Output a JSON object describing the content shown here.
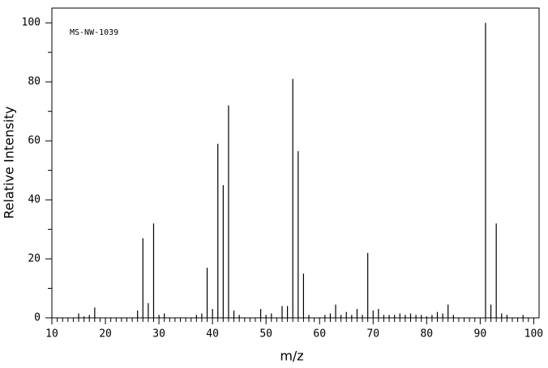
{
  "chart_data": {
    "type": "stem",
    "annotation": "MS-NW-1039",
    "xlabel": "m/z",
    "ylabel": "Relative Intensity",
    "color": "#000000",
    "x": [
      15,
      16,
      17,
      18,
      26,
      27,
      28,
      29,
      30,
      31,
      37,
      38,
      39,
      40,
      41,
      42,
      43,
      44,
      45,
      49,
      50,
      51,
      53,
      54,
      55,
      56,
      57,
      58,
      61,
      62,
      63,
      64,
      65,
      66,
      67,
      68,
      69,
      70,
      71,
      72,
      73,
      74,
      75,
      76,
      77,
      78,
      79,
      80,
      81,
      82,
      83,
      84,
      85,
      91,
      92,
      93,
      94,
      95,
      98
    ],
    "values": [
      1.5,
      0.5,
      1,
      3.5,
      2.5,
      27,
      5,
      32,
      1,
      1.5,
      1,
      1.5,
      17,
      3,
      59,
      45,
      72,
      2.5,
      1,
      3,
      1,
      1.5,
      4,
      4,
      81,
      56.5,
      15,
      1,
      1,
      1.5,
      4.5,
      1,
      2,
      1,
      3,
      1,
      22,
      2.5,
      3,
      1,
      1,
      1,
      1.5,
      1,
      1.5,
      1,
      1,
      0.5,
      1,
      2,
      1.5,
      4.5,
      1,
      100,
      4.5,
      32,
      1.5,
      1,
      1
    ],
    "xlim": [
      10,
      101
    ],
    "ylim": [
      0,
      105
    ],
    "xticks": [
      10,
      20,
      30,
      40,
      50,
      60,
      70,
      80,
      90,
      100
    ],
    "xminorticks": [
      11,
      12,
      13,
      14,
      15,
      16,
      17,
      18,
      19,
      21,
      22,
      23,
      24,
      25,
      26,
      27,
      28,
      29,
      31,
      32,
      33,
      34,
      35,
      36,
      37,
      38,
      39,
      41,
      42,
      43,
      44,
      45,
      46,
      47,
      48,
      49,
      51,
      52,
      53,
      54,
      55,
      56,
      57,
      58,
      59,
      61,
      62,
      63,
      64,
      65,
      66,
      67,
      68,
      69,
      71,
      72,
      73,
      74,
      75,
      76,
      77,
      78,
      79,
      81,
      82,
      83,
      84,
      85,
      86,
      87,
      88,
      89,
      91,
      92,
      93,
      94,
      95,
      96,
      97,
      98,
      99
    ],
    "yticks": [
      0,
      20,
      40,
      60,
      80,
      100
    ],
    "yminorticks": [
      10,
      30,
      50,
      70,
      90
    ]
  }
}
